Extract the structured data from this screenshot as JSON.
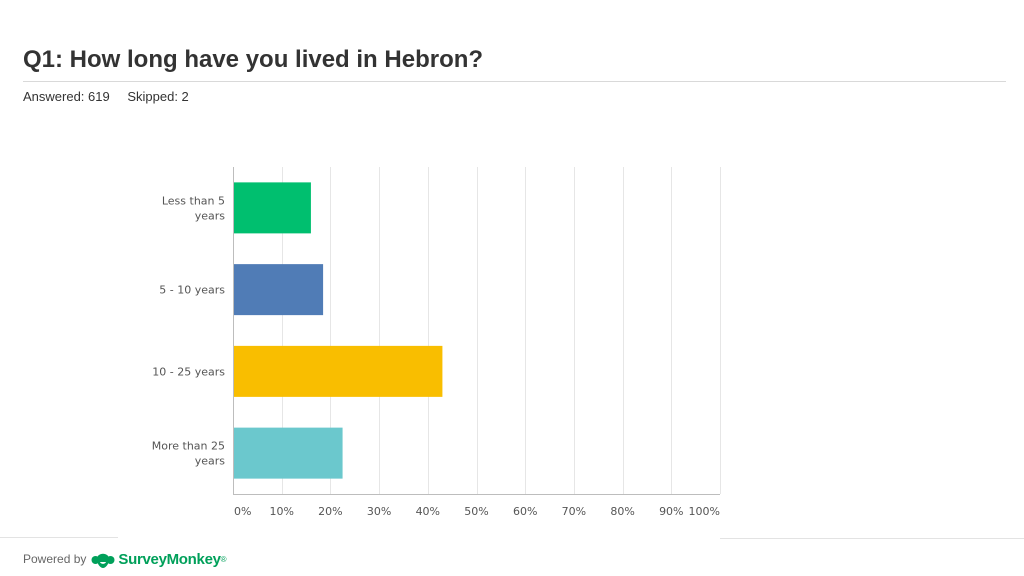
{
  "question": {
    "title": "Q1: How long have you lived in Hebron?",
    "answered": "Answered: 619",
    "skipped": "Skipped: 2"
  },
  "footer": {
    "powered_by": "Powered by",
    "brand": "SurveyMonkey",
    "brand_mark": "®",
    "brand_icon": "surveymonkey-logo-icon",
    "brand_color": "#00a05a"
  },
  "chart_data": {
    "type": "bar",
    "orientation": "horizontal",
    "categories": [
      [
        "Less than 5",
        "years"
      ],
      [
        "5 - 10 years"
      ],
      [
        "10 - 25 years"
      ],
      [
        "More than 25",
        "years"
      ]
    ],
    "values": [
      16,
      18.5,
      43,
      22.5
    ],
    "colors": [
      "#00bf6f",
      "#507cb6",
      "#f9be00",
      "#6bc8cd"
    ],
    "xlim": [
      0,
      100
    ],
    "ticks": [
      0,
      10,
      20,
      30,
      40,
      50,
      60,
      70,
      80,
      90,
      100
    ],
    "tick_labels": [
      "0%",
      "10%",
      "20%",
      "30%",
      "40%",
      "50%",
      "60%",
      "70%",
      "80%",
      "90%",
      "100%"
    ],
    "grid": true,
    "legend": "none",
    "title": "",
    "xlabel": "",
    "ylabel": ""
  }
}
